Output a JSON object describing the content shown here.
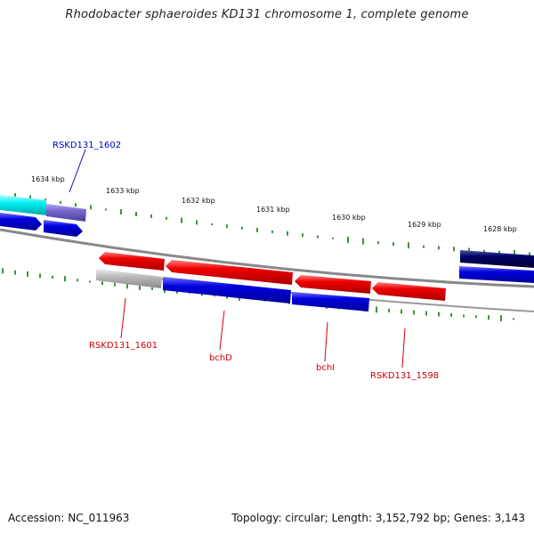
{
  "title": "Rhodobacter sphaeroides KD131 chromosome 1, complete genome",
  "ticks": [
    "1634 kbp",
    "1633 kbp",
    "1632 kbp",
    "1631 kbp",
    "1630 kbp",
    "1629 kbp",
    "1628 kbp"
  ],
  "gene_labels": [
    {
      "text": "RSKD131_1602",
      "color": "#0000cc"
    },
    {
      "text": "RSKD131_1601",
      "color": "#cc0000"
    },
    {
      "text": "bchD",
      "color": "#cc0000"
    },
    {
      "text": "bchI",
      "color": "#cc0000"
    },
    {
      "text": "RSKD131_1598",
      "color": "#cc0000"
    }
  ],
  "colors": {
    "backbone": "#808080",
    "forward_gene": "#ee0000",
    "reverse_gene": "#0000dd",
    "dark_gene": "#000066",
    "cyan_gene": "#00eeee",
    "lavender_gene": "#7766cc",
    "gray_gene": "#bbbbbb",
    "gc_marks": "#117711"
  },
  "footer": {
    "accession": "Accession: NC_011963",
    "summary": "Topology: circular; Length: 3,152,792 bp; Genes: 3,143"
  }
}
